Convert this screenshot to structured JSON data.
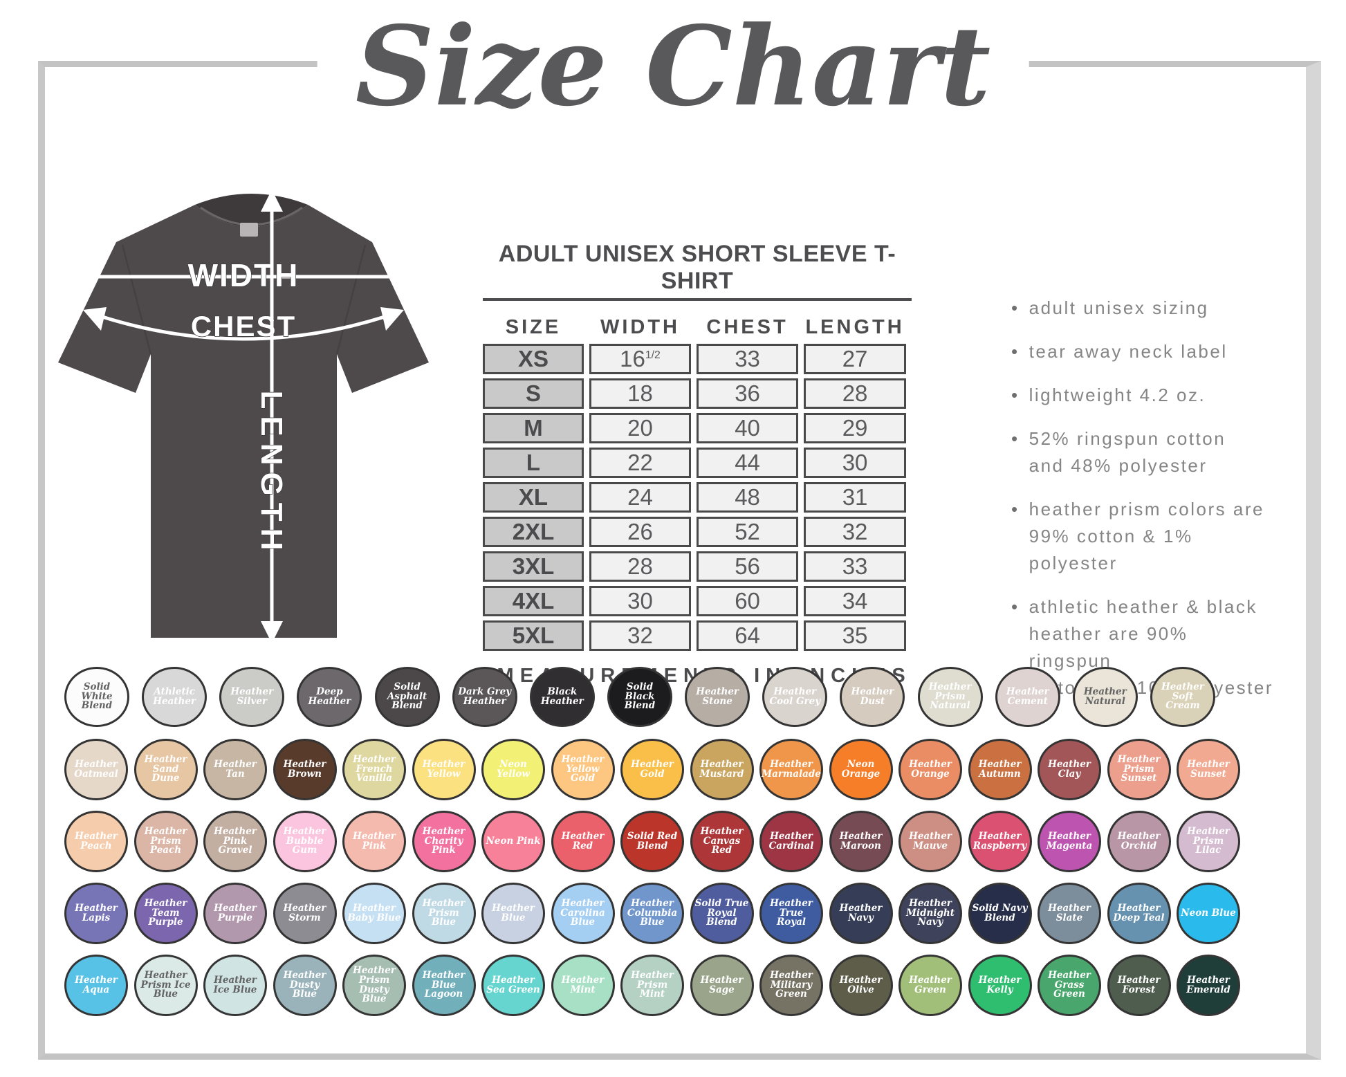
{
  "title": "Size Chart",
  "shirt_diagram": {
    "width_label": "WIDTH",
    "chest_label": "CHEST",
    "length_label": "LENGTH"
  },
  "size_table": {
    "title": "ADULT UNISEX SHORT SLEEVE T-SHIRT",
    "columns": [
      "SIZE",
      "WIDTH",
      "CHEST",
      "LENGTH"
    ],
    "rows": [
      {
        "size": "XS",
        "width": "16",
        "width_sup": "1/2",
        "chest": "33",
        "length": "27"
      },
      {
        "size": "S",
        "width": "18",
        "chest": "36",
        "length": "28"
      },
      {
        "size": "M",
        "width": "20",
        "chest": "40",
        "length": "29"
      },
      {
        "size": "L",
        "width": "22",
        "chest": "44",
        "length": "30"
      },
      {
        "size": "XL",
        "width": "24",
        "chest": "48",
        "length": "31"
      },
      {
        "size": "2XL",
        "width": "26",
        "chest": "52",
        "length": "32"
      },
      {
        "size": "3XL",
        "width": "28",
        "chest": "56",
        "length": "33"
      },
      {
        "size": "4XL",
        "width": "30",
        "chest": "60",
        "length": "34"
      },
      {
        "size": "5XL",
        "width": "32",
        "chest": "64",
        "length": "35"
      }
    ],
    "footnote": "*MEASUREMENTS IN INCHES"
  },
  "features": [
    "adult unisex sizing",
    "tear away neck label",
    "lightweight 4.2 oz.",
    "52% ringspun cotton\nand 48% polyester",
    "heather prism colors are\n99% cotton & 1% polyester",
    "athletic heather &  black\nheather are 90% ringspun\ncotton and 10% polyester"
  ],
  "shirt_color": "#4e4a4c",
  "swatch_rows": [
    [
      {
        "name": "Solid White Blend",
        "color": "#fcfcfc",
        "text": "dark"
      },
      {
        "name": "Athletic Heather",
        "color": "#d8d8d8",
        "text": "light"
      },
      {
        "name": "Heather Silver",
        "color": "#cbcbc7",
        "text": "light"
      },
      {
        "name": "Deep Heather",
        "color": "#6c686b",
        "text": "light"
      },
      {
        "name": "Solid Asphalt Blend",
        "color": "#4c4849",
        "text": "light"
      },
      {
        "name": "Dark Grey Heather",
        "color": "#5b5758",
        "text": "light"
      },
      {
        "name": "Black Heather",
        "color": "#302e31",
        "text": "light"
      },
      {
        "name": "Solid Black Blend",
        "color": "#1c1c1e",
        "text": "light"
      },
      {
        "name": "Heather Stone",
        "color": "#b6ada5",
        "text": "light"
      },
      {
        "name": "Heather Cool Grey",
        "color": "#dad4ce",
        "text": "light"
      },
      {
        "name": "Heather Dust",
        "color": "#d6cbbf",
        "text": "light"
      },
      {
        "name": "Heather Prism Natural",
        "color": "#dfdcd0",
        "text": "light"
      },
      {
        "name": "Heather Cement",
        "color": "#ded3d1",
        "text": "light"
      },
      {
        "name": "Heather Natural",
        "color": "#ebe5d9",
        "text": "dark"
      },
      {
        "name": "Heather Soft Cream",
        "color": "#dad2b8",
        "text": "light"
      }
    ],
    [
      {
        "name": "Heather Oatmeal",
        "color": "#e5d8c9",
        "text": "light"
      },
      {
        "name": "Heather Sand Dune",
        "color": "#e7c6a3",
        "text": "light"
      },
      {
        "name": "Heather Tan",
        "color": "#c6b6a3",
        "text": "light"
      },
      {
        "name": "Heather Brown",
        "color": "#593b2c",
        "text": "light"
      },
      {
        "name": "Heather French Vanilla",
        "color": "#ded7a0",
        "text": "light"
      },
      {
        "name": "Heather Yellow",
        "color": "#fbe180",
        "text": "light"
      },
      {
        "name": "Neon Yellow",
        "color": "#f2f075",
        "text": "light"
      },
      {
        "name": "Heather Yellow Gold",
        "color": "#fdc782",
        "text": "light"
      },
      {
        "name": "Heather Gold",
        "color": "#f9bf48",
        "text": "light"
      },
      {
        "name": "Heather Mustard",
        "color": "#c9a55f",
        "text": "light"
      },
      {
        "name": "Heather Marmalade",
        "color": "#ef964a",
        "text": "light"
      },
      {
        "name": "Neon Orange",
        "color": "#f67e29",
        "text": "light"
      },
      {
        "name": "Heather Orange",
        "color": "#eb8d64",
        "text": "light"
      },
      {
        "name": "Heather Autumn",
        "color": "#cb7141",
        "text": "light"
      },
      {
        "name": "Heather Clay",
        "color": "#a25657",
        "text": "light"
      },
      {
        "name": "Heather Prism Sunset",
        "color": "#ed9f8d",
        "text": "light"
      },
      {
        "name": "Heather Sunset",
        "color": "#f2a991",
        "text": "light"
      }
    ],
    [
      {
        "name": "Heather Peach",
        "color": "#f6cdac",
        "text": "light"
      },
      {
        "name": "Heather Prism Peach",
        "color": "#dbb6a6",
        "text": "light"
      },
      {
        "name": "Heather Pink Gravel",
        "color": "#c3aea2",
        "text": "light"
      },
      {
        "name": "Heather Bubble Gum",
        "color": "#fbc4df",
        "text": "light"
      },
      {
        "name": "Heather Pink",
        "color": "#f5baae",
        "text": "light"
      },
      {
        "name": "Heather Charity Pink",
        "color": "#f2719e",
        "text": "light"
      },
      {
        "name": "Neon Pink",
        "color": "#f78198",
        "text": "light"
      },
      {
        "name": "Heather Red",
        "color": "#ea616b",
        "text": "light"
      },
      {
        "name": "Solid Red Blend",
        "color": "#bb352b",
        "text": "light"
      },
      {
        "name": "Heather Canvas Red",
        "color": "#ac3638",
        "text": "light"
      },
      {
        "name": "Heather Cardinal",
        "color": "#9e3545",
        "text": "light"
      },
      {
        "name": "Heather Maroon",
        "color": "#774b54",
        "text": "light"
      },
      {
        "name": "Heather Mauve",
        "color": "#cd8f83",
        "text": "light"
      },
      {
        "name": "Heather Raspberry",
        "color": "#da5172",
        "text": "light"
      },
      {
        "name": "Heather Magenta",
        "color": "#bd55b0",
        "text": "light"
      },
      {
        "name": "Heather Orchid",
        "color": "#b896a6",
        "text": "light"
      },
      {
        "name": "Heather Prism Lilac",
        "color": "#d5bbcf",
        "text": "light"
      }
    ],
    [
      {
        "name": "Heather Lapis",
        "color": "#7875b6",
        "text": "light"
      },
      {
        "name": "Heather Team Purple",
        "color": "#7c66ad",
        "text": "light"
      },
      {
        "name": "Heather Purple",
        "color": "#b298ad",
        "text": "light"
      },
      {
        "name": "Heather Storm",
        "color": "#8d8c92",
        "text": "light"
      },
      {
        "name": "Heather Baby Blue",
        "color": "#c5dff3",
        "text": "light"
      },
      {
        "name": "Heather Prism Blue",
        "color": "#bfd9e5",
        "text": "light"
      },
      {
        "name": "Heather Blue",
        "color": "#c7d1e1",
        "text": "light"
      },
      {
        "name": "Heather Carolina Blue",
        "color": "#a5cff2",
        "text": "light"
      },
      {
        "name": "Heather Columbia Blue",
        "color": "#7196cc",
        "text": "light"
      },
      {
        "name": "Solid True Royal Blend",
        "color": "#4f5c9d",
        "text": "light"
      },
      {
        "name": "Heather True Royal",
        "color": "#3f5ca0",
        "text": "light"
      },
      {
        "name": "Heather Navy",
        "color": "#363e57",
        "text": "light"
      },
      {
        "name": "Heather Midnight Navy",
        "color": "#3e425b",
        "text": "light"
      },
      {
        "name": "Solid Navy Blend",
        "color": "#272e4a",
        "text": "light"
      },
      {
        "name": "Heather Slate",
        "color": "#7c8d9b",
        "text": "light"
      },
      {
        "name": "Heather Deep Teal",
        "color": "#6792af",
        "text": "light"
      },
      {
        "name": "Neon Blue",
        "color": "#2bbaec",
        "text": "light"
      }
    ],
    [
      {
        "name": "Heather Aqua",
        "color": "#58c1e6",
        "text": "light"
      },
      {
        "name": "Heather Prism Ice Blue",
        "color": "#dbeae6",
        "text": "dark"
      },
      {
        "name": "Heather Ice Blue",
        "color": "#d1e4e4",
        "text": "dark"
      },
      {
        "name": "Heather Dusty Blue",
        "color": "#9ab3ba",
        "text": "light"
      },
      {
        "name": "Heather Prism Dusty Blue",
        "color": "#a6beb2",
        "text": "light"
      },
      {
        "name": "Heather Blue Lagoon",
        "color": "#71afbb",
        "text": "light"
      },
      {
        "name": "Heather Sea Green",
        "color": "#67d5cf",
        "text": "light"
      },
      {
        "name": "Heather Mint",
        "color": "#a8e0c5",
        "text": "light"
      },
      {
        "name": "Heather Prism Mint",
        "color": "#b4d1c4",
        "text": "light"
      },
      {
        "name": "Heather Sage",
        "color": "#99a48b",
        "text": "light"
      },
      {
        "name": "Heather Military Green",
        "color": "#777364",
        "text": "light"
      },
      {
        "name": "Heather Olive",
        "color": "#5e5d49",
        "text": "light"
      },
      {
        "name": "Heather Green",
        "color": "#a2bf79",
        "text": "light"
      },
      {
        "name": "Heather Kelly",
        "color": "#2fbd70",
        "text": "light"
      },
      {
        "name": "Heather Grass Green",
        "color": "#49a76d",
        "text": "light"
      },
      {
        "name": "Heather Forest",
        "color": "#4e5d4e",
        "text": "light"
      },
      {
        "name": "Heather Emerald",
        "color": "#1f3e3a",
        "text": "light"
      }
    ]
  ]
}
